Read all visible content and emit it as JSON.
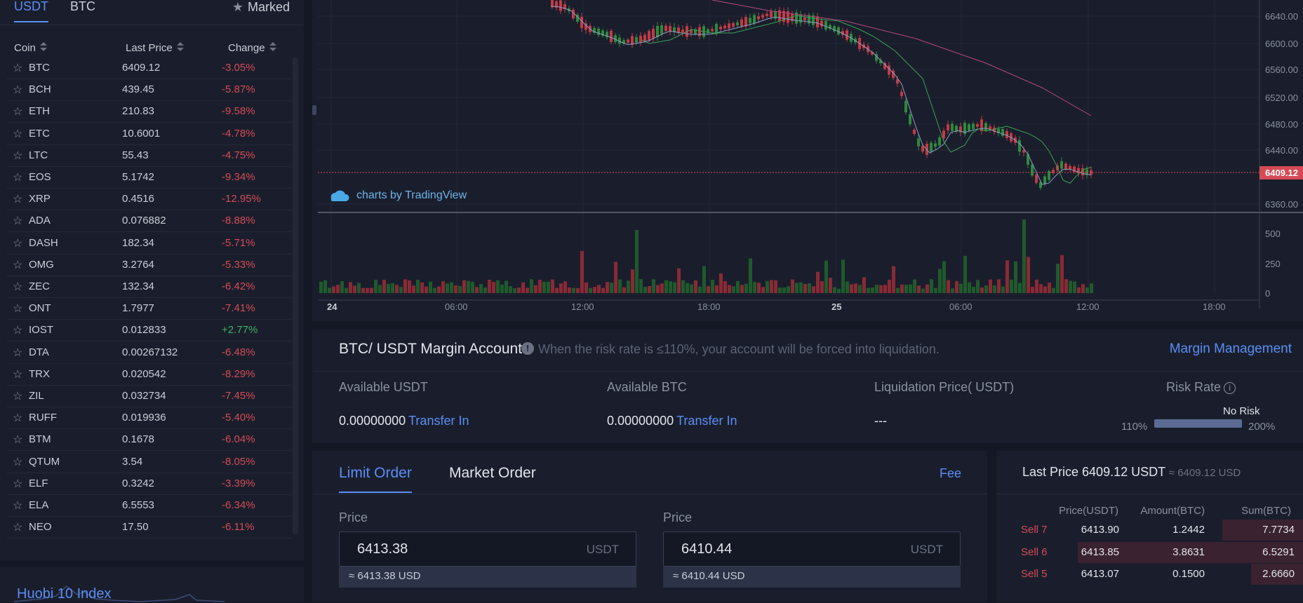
{
  "market_tabs": {
    "usdt": "USDT",
    "btc": "BTC",
    "marked": "Marked"
  },
  "columns": {
    "coin": "Coin",
    "last_price": "Last Price",
    "change": "Change"
  },
  "coins": [
    {
      "name": "BTC",
      "price": "6409.12",
      "change": "-3.05%"
    },
    {
      "name": "BCH",
      "price": "439.45",
      "change": "-5.87%"
    },
    {
      "name": "ETH",
      "price": "210.83",
      "change": "-9.58%"
    },
    {
      "name": "ETC",
      "price": "10.6001",
      "change": "-4.78%"
    },
    {
      "name": "LTC",
      "price": "55.43",
      "change": "-4.75%"
    },
    {
      "name": "EOS",
      "price": "5.1742",
      "change": "-9.34%"
    },
    {
      "name": "XRP",
      "price": "0.4516",
      "change": "-12.95%"
    },
    {
      "name": "ADA",
      "price": "0.076882",
      "change": "-8.88%"
    },
    {
      "name": "DASH",
      "price": "182.34",
      "change": "-5.71%"
    },
    {
      "name": "OMG",
      "price": "3.2764",
      "change": "-5.33%"
    },
    {
      "name": "ZEC",
      "price": "132.34",
      "change": "-6.42%"
    },
    {
      "name": "ONT",
      "price": "1.7977",
      "change": "-7.41%"
    },
    {
      "name": "IOST",
      "price": "0.012833",
      "change": "+2.77%"
    },
    {
      "name": "DTA",
      "price": "0.00267132",
      "change": "-6.48%"
    },
    {
      "name": "TRX",
      "price": "0.020542",
      "change": "-8.29%"
    },
    {
      "name": "ZIL",
      "price": "0.032734",
      "change": "-7.45%"
    },
    {
      "name": "RUFF",
      "price": "0.019936",
      "change": "-5.40%"
    },
    {
      "name": "BTM",
      "price": "0.1678",
      "change": "-6.04%"
    },
    {
      "name": "QTUM",
      "price": "3.54",
      "change": "-8.05%"
    },
    {
      "name": "ELF",
      "price": "0.3242",
      "change": "-3.39%"
    },
    {
      "name": "ELA",
      "price": "6.5553",
      "change": "-6.34%"
    },
    {
      "name": "NEO",
      "price": "17.50",
      "change": "-6.11%"
    }
  ],
  "huobi_index": "Huobi 10 Index",
  "chart": {
    "attribution": "charts by TradingView",
    "price_ticks": [
      "6640.00",
      "6600.00",
      "6560.00",
      "6520.00",
      "6480.00",
      "6440.00",
      "6360.00"
    ],
    "last_price_tag": "6409.12",
    "volume_ticks": [
      "500",
      "250",
      "0"
    ],
    "time_ticks": [
      "24",
      "06:00",
      "12:00",
      "18:00",
      "25",
      "06:00",
      "12:00",
      "18:00"
    ],
    "colors": {
      "up": "#2c8a3c",
      "down": "#c23a45",
      "ma_fast": "#8e9cc9",
      "ma_mid": "#3ca055",
      "ma_slow": "#b54680"
    }
  },
  "margin": {
    "title": "BTC/ USDT Margin Account",
    "note": "When the risk rate is ≤110%, your account will be forced into liquidation.",
    "management_link": "Margin Management",
    "available_usdt_label": "Available USDT",
    "available_usdt_value": "0.00000000",
    "available_btc_label": "Available BTC",
    "available_btc_value": "0.00000000",
    "transfer_in": "Transfer In",
    "liquidation_label": "Liquidation Price( USDT)",
    "liquidation_value": "---",
    "risk_label": "Risk Rate",
    "risk_status": "No Risk",
    "risk_min": "110%",
    "risk_max": "200%"
  },
  "order": {
    "limit_tab": "Limit Order",
    "market_tab": "Market Order",
    "fee": "Fee",
    "buy_price_label": "Price",
    "buy_price": "6413.38",
    "buy_unit": "USDT",
    "buy_usd": "≈ 6413.38 USD",
    "sell_price_label": "Price",
    "sell_price": "6410.44",
    "sell_unit": "USDT",
    "sell_usd": "≈ 6410.44 USD"
  },
  "book": {
    "last_price": "Last Price 6409.12 USDT",
    "last_price_usd": "≈ 6409.12 USD",
    "headers": {
      "price": "Price(USDT)",
      "amount": "Amount(BTC)",
      "sum": "Sum(BTC)"
    },
    "rows": [
      {
        "side": "Sell 7",
        "price": "6413.90",
        "amount": "1.2442",
        "sum": "7.7734",
        "depth": 0.28
      },
      {
        "side": "Sell 6",
        "price": "6413.85",
        "amount": "3.8631",
        "sum": "6.5291",
        "depth": 0.78
      },
      {
        "side": "Sell 5",
        "price": "6413.07",
        "amount": "0.1500",
        "sum": "2.6660",
        "depth": 0.18
      }
    ]
  }
}
